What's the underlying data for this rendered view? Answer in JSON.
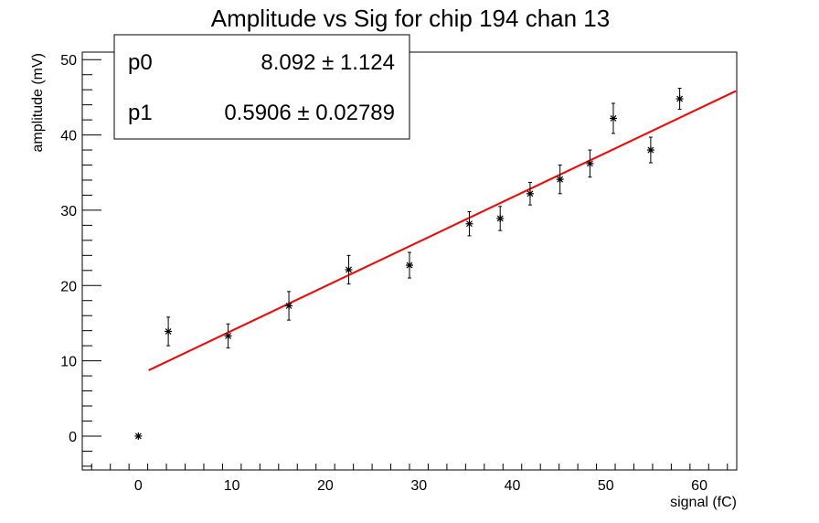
{
  "chart_data": {
    "type": "scatter",
    "title": "Amplitude vs Sig for chip 194 chan 13",
    "xlabel": "signal (fC)",
    "ylabel": "amplitude (mV)",
    "xlim": [
      -6,
      64
    ],
    "ylim": [
      -4.5,
      51
    ],
    "x_ticks": [
      0,
      10,
      20,
      30,
      40,
      50,
      60
    ],
    "y_ticks": [
      0,
      10,
      20,
      30,
      40,
      50
    ],
    "grid": false,
    "legend": "none",
    "points": [
      {
        "x": 0.0,
        "y": 0.0,
        "err": 0.0
      },
      {
        "x": 3.2,
        "y": 13.9,
        "err": 1.9
      },
      {
        "x": 9.6,
        "y": 13.3,
        "err": 1.6
      },
      {
        "x": 16.1,
        "y": 17.3,
        "err": 1.9
      },
      {
        "x": 22.5,
        "y": 22.1,
        "err": 1.9
      },
      {
        "x": 29.0,
        "y": 22.7,
        "err": 1.7
      },
      {
        "x": 35.4,
        "y": 28.2,
        "err": 1.6
      },
      {
        "x": 38.7,
        "y": 28.9,
        "err": 1.6
      },
      {
        "x": 41.9,
        "y": 32.2,
        "err": 1.5
      },
      {
        "x": 45.1,
        "y": 34.1,
        "err": 1.9
      },
      {
        "x": 48.3,
        "y": 36.2,
        "err": 1.8
      },
      {
        "x": 50.8,
        "y": 42.2,
        "err": 2.0
      },
      {
        "x": 54.8,
        "y": 38.0,
        "err": 1.7
      },
      {
        "x": 57.9,
        "y": 44.8,
        "err": 1.4
      }
    ],
    "fit": {
      "type": "linear",
      "x_range": [
        1.1,
        63.9
      ],
      "color": "#ff0000",
      "params": [
        {
          "name": "p0",
          "value": 8.092,
          "error": 1.124,
          "display": "8.092 ± 1.124"
        },
        {
          "name": "p1",
          "value": 0.5906,
          "error": 0.02789,
          "display": "0.5906 ± 0.02789"
        }
      ]
    },
    "stats_box_position": "top-left"
  }
}
